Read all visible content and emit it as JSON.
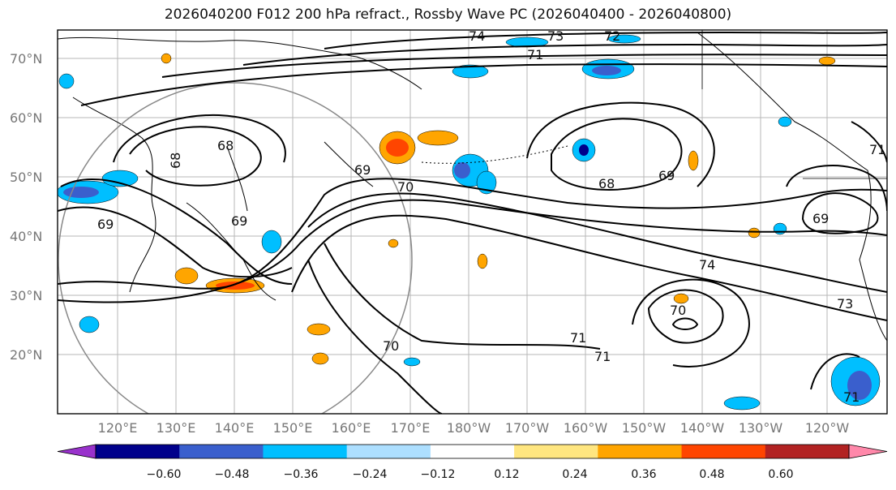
{
  "title": "2026040200 F012 200 hPa refract., Rossby Wave PC (2026040400 - 2026040800)",
  "latitude_labels": [
    "70°N",
    "60°N",
    "50°N",
    "40°N",
    "30°N",
    "20°N"
  ],
  "longitude_labels": [
    "120°E",
    "130°E",
    "140°E",
    "150°E",
    "160°E",
    "170°E",
    "180°W",
    "170°W",
    "160°W",
    "150°W",
    "140°W",
    "130°W",
    "120°W"
  ],
  "contour_labels": [
    "74",
    "73",
    "72",
    "71",
    "68",
    "68",
    "69",
    "70",
    "69",
    "68",
    "69",
    "69",
    "71",
    "74",
    "73",
    "70",
    "71",
    "71",
    "70",
    "69",
    "71"
  ],
  "colorbar": {
    "ticks": [
      "−0.60",
      "−0.48",
      "−0.36",
      "−0.24",
      "−0.12",
      "0.12",
      "0.24",
      "0.36",
      "0.48",
      "0.60"
    ],
    "colors": [
      "#9932CC",
      "#00008B",
      "#3A5FCD",
      "#00BFFF",
      "#ADDFFF",
      "#FFFFFF",
      "#FFE680",
      "#FFA500",
      "#FF4500",
      "#B22222",
      "#FF88AA"
    ]
  }
}
